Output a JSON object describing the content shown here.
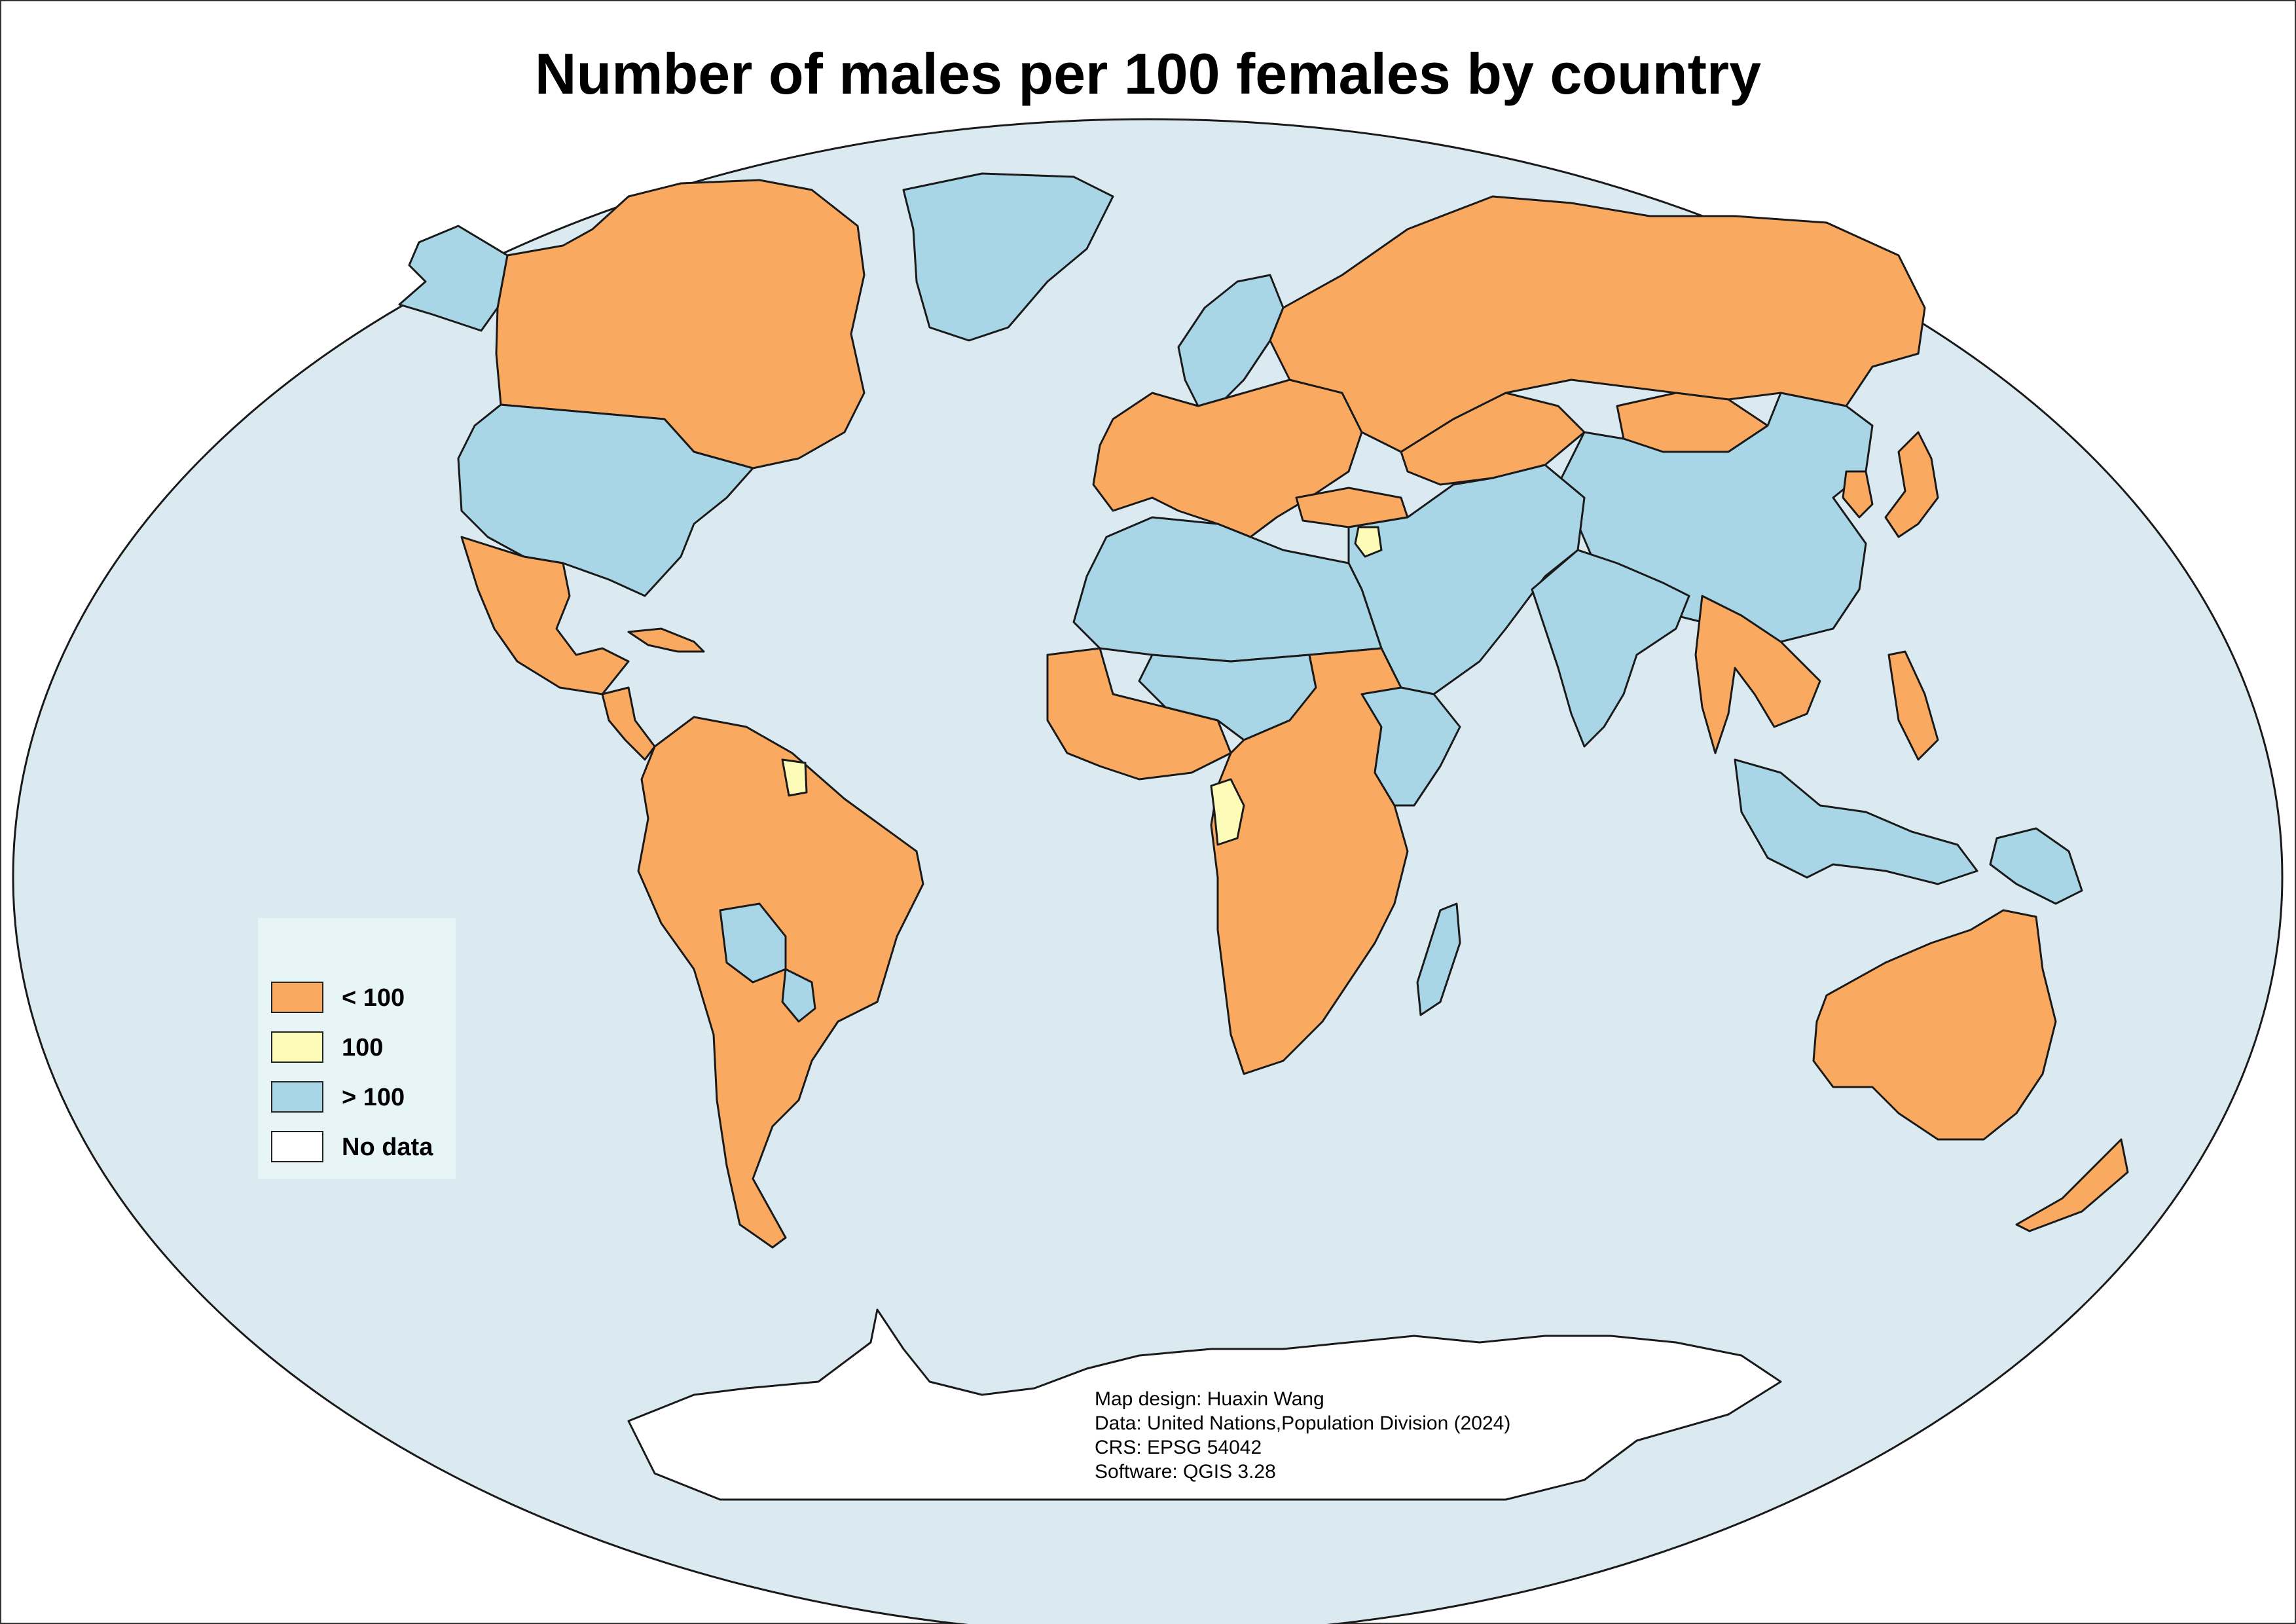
{
  "title": "Number of males per 100 females by country",
  "colors": {
    "ocean": "#dbeaf1",
    "below_100": "#f9aa60",
    "equal_100": "#fdfbb8",
    "above_100": "#a9d6e6",
    "no_data": "#ffffff",
    "border": "#1a1a1a",
    "legend_background": "#e8f5f7"
  },
  "legend": {
    "items": [
      {
        "label": "< 100",
        "color": "#f9aa60"
      },
      {
        "label": "100",
        "color": "#fdfbb8"
      },
      {
        "label": "> 100",
        "color": "#a9d6e6"
      },
      {
        "label": "No data",
        "color": "#ffffff"
      }
    ]
  },
  "credits": {
    "design": "Map design: Huaxin Wang",
    "data": "Data: United Nations,Population Division (2024)",
    "crs": "CRS: EPSG 54042",
    "software": "Software: QGIS 3.28"
  },
  "regions": [
    {
      "name": "canada",
      "category": "below_100"
    },
    {
      "name": "alaska",
      "category": "above_100"
    },
    {
      "name": "united-states",
      "category": "above_100"
    },
    {
      "name": "greenland",
      "category": "above_100"
    },
    {
      "name": "mexico",
      "category": "below_100"
    },
    {
      "name": "central-america",
      "category": "below_100"
    },
    {
      "name": "cuba",
      "category": "below_100"
    },
    {
      "name": "south-america",
      "category": "below_100"
    },
    {
      "name": "bolivia",
      "category": "above_100"
    },
    {
      "name": "paraguay",
      "category": "above_100"
    },
    {
      "name": "suriname",
      "category": "equal_100"
    },
    {
      "name": "europe",
      "category": "below_100"
    },
    {
      "name": "scandinavia",
      "category": "above_100"
    },
    {
      "name": "russia",
      "category": "below_100"
    },
    {
      "name": "mongolia",
      "category": "below_100"
    },
    {
      "name": "kazakhstan",
      "category": "below_100"
    },
    {
      "name": "china",
      "category": "above_100"
    },
    {
      "name": "korea",
      "category": "below_100"
    },
    {
      "name": "japan",
      "category": "below_100"
    },
    {
      "name": "turkey",
      "category": "below_100"
    },
    {
      "name": "middle-east",
      "category": "above_100"
    },
    {
      "name": "syria",
      "category": "equal_100"
    },
    {
      "name": "india",
      "category": "above_100"
    },
    {
      "name": "southeast-asia",
      "category": "below_100"
    },
    {
      "name": "indonesia",
      "category": "above_100"
    },
    {
      "name": "philippines",
      "category": "below_100"
    },
    {
      "name": "papua-new-guinea",
      "category": "above_100"
    },
    {
      "name": "australia",
      "category": "below_100"
    },
    {
      "name": "new-zealand",
      "category": "below_100"
    },
    {
      "name": "north-africa",
      "category": "above_100"
    },
    {
      "name": "west-africa",
      "category": "below_100"
    },
    {
      "name": "sahel",
      "category": "above_100"
    },
    {
      "name": "central-southern-africa",
      "category": "below_100"
    },
    {
      "name": "horn-of-africa",
      "category": "above_100"
    },
    {
      "name": "congo",
      "category": "equal_100"
    },
    {
      "name": "madagascar",
      "category": "above_100"
    },
    {
      "name": "antarctica",
      "category": "no_data"
    }
  ]
}
